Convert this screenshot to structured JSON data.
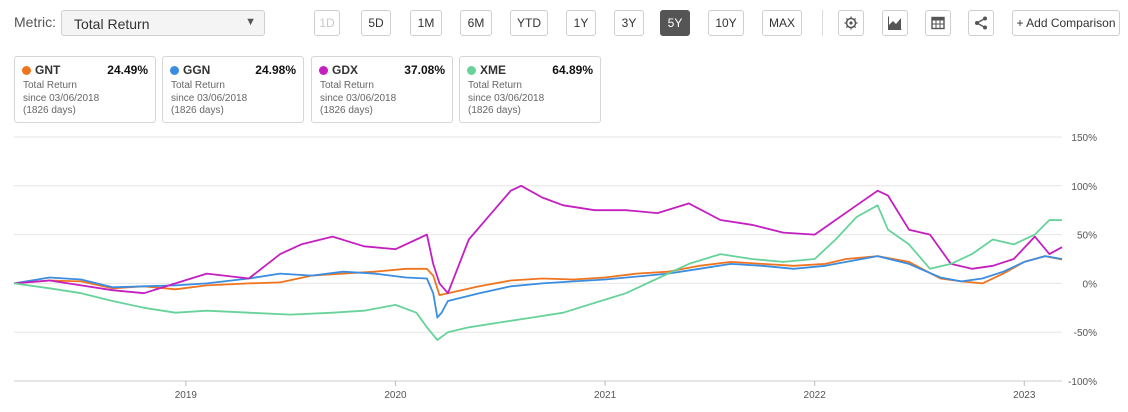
{
  "toolbar": {
    "metric_label": "Metric:",
    "metric_value": "Total Return",
    "ranges": [
      "1D",
      "5D",
      "1M",
      "6M",
      "YTD",
      "1Y",
      "3Y",
      "5Y",
      "10Y",
      "MAX"
    ],
    "active_range": "5Y",
    "disabled_range": "1D",
    "icons": [
      "gear-icon",
      "area-chart-icon",
      "table-icon",
      "share-icon"
    ],
    "add_comparison": "+ Add Comparison"
  },
  "cards": [
    {
      "symbol": "GNT",
      "value": "24.49%",
      "metric": "Total Return",
      "since": "since 03/06/2018",
      "days": "(1826 days)",
      "color": "#f0741e"
    },
    {
      "symbol": "GGN",
      "value": "24.98%",
      "metric": "Total Return",
      "since": "since 03/06/2018",
      "days": "(1826 days)",
      "color": "#3a8de0"
    },
    {
      "symbol": "GDX",
      "value": "37.08%",
      "metric": "Total Return",
      "since": "since 03/06/2018",
      "days": "(1826 days)",
      "color": "#c41fc0"
    },
    {
      "symbol": "XME",
      "value": "64.89%",
      "metric": "Total Return",
      "since": "since 03/06/2018",
      "days": "(1826 days)",
      "color": "#67d39a"
    }
  ],
  "chart_data": {
    "type": "line",
    "x_range": [
      2018.18,
      2023.18
    ],
    "ylim": [
      -100,
      150
    ],
    "y_ticks": [
      150,
      100,
      50,
      0,
      -50,
      -100
    ],
    "y_tick_labels": [
      "150%",
      "100%",
      "50%",
      "0%",
      "-50%",
      "-100%"
    ],
    "x_ticks": [
      2019,
      2020,
      2021,
      2022,
      2023
    ],
    "x_tick_labels": [
      "2019",
      "2020",
      "2021",
      "2022",
      "2023"
    ],
    "grid": "horizontal",
    "series": [
      {
        "name": "GNT",
        "color": "#f0741e",
        "x": [
          2018.18,
          2018.35,
          2018.5,
          2018.65,
          2018.8,
          2018.95,
          2019.1,
          2019.3,
          2019.45,
          2019.6,
          2019.75,
          2019.9,
          2020.05,
          2020.15,
          2020.18,
          2020.21,
          2020.25,
          2020.4,
          2020.55,
          2020.7,
          2020.85,
          2021.0,
          2021.15,
          2021.3,
          2021.45,
          2021.6,
          2021.75,
          2021.9,
          2022.05,
          2022.15,
          2022.3,
          2022.45,
          2022.6,
          2022.7,
          2022.8,
          2022.9,
          2023.0,
          2023.1,
          2023.18
        ],
        "y": [
          0,
          3,
          2,
          -5,
          -3,
          -6,
          -2,
          0,
          1,
          8,
          10,
          12,
          15,
          15,
          8,
          -12,
          -10,
          -3,
          3,
          5,
          4,
          6,
          10,
          12,
          18,
          22,
          20,
          18,
          20,
          25,
          28,
          22,
          5,
          2,
          0,
          10,
          22,
          28,
          24.49
        ]
      },
      {
        "name": "GGN",
        "color": "#3a8de0",
        "x": [
          2018.18,
          2018.35,
          2018.5,
          2018.65,
          2018.8,
          2018.95,
          2019.1,
          2019.3,
          2019.45,
          2019.6,
          2019.75,
          2019.9,
          2020.05,
          2020.15,
          2020.18,
          2020.2,
          2020.22,
          2020.25,
          2020.4,
          2020.55,
          2020.7,
          2020.85,
          2021.0,
          2021.15,
          2021.3,
          2021.45,
          2021.6,
          2021.75,
          2021.9,
          2022.05,
          2022.15,
          2022.3,
          2022.45,
          2022.6,
          2022.7,
          2022.8,
          2022.9,
          2023.0,
          2023.1,
          2023.18
        ],
        "y": [
          0,
          6,
          4,
          -4,
          -3,
          -2,
          0,
          5,
          10,
          8,
          12,
          10,
          6,
          5,
          -10,
          -35,
          -30,
          -18,
          -10,
          -3,
          0,
          2,
          4,
          7,
          10,
          15,
          20,
          18,
          15,
          18,
          22,
          28,
          20,
          6,
          2,
          5,
          12,
          22,
          28,
          24.98
        ]
      },
      {
        "name": "GDX",
        "color": "#c41fc0",
        "x": [
          2018.18,
          2018.35,
          2018.5,
          2018.65,
          2018.8,
          2018.95,
          2019.1,
          2019.3,
          2019.45,
          2019.55,
          2019.7,
          2019.85,
          2020.0,
          2020.1,
          2020.15,
          2020.18,
          2020.21,
          2020.25,
          2020.35,
          2020.45,
          2020.55,
          2020.6,
          2020.7,
          2020.8,
          2020.95,
          2021.1,
          2021.25,
          2021.4,
          2021.55,
          2021.7,
          2021.85,
          2022.0,
          2022.1,
          2022.2,
          2022.3,
          2022.35,
          2022.45,
          2022.55,
          2022.65,
          2022.75,
          2022.85,
          2022.95,
          2023.05,
          2023.12,
          2023.18
        ],
        "y": [
          0,
          3,
          -2,
          -7,
          -10,
          0,
          10,
          5,
          30,
          40,
          48,
          38,
          35,
          45,
          50,
          20,
          0,
          -10,
          45,
          70,
          95,
          100,
          88,
          80,
          75,
          75,
          72,
          82,
          65,
          60,
          52,
          50,
          65,
          80,
          95,
          90,
          55,
          50,
          20,
          15,
          18,
          25,
          48,
          30,
          37.08
        ]
      },
      {
        "name": "XME",
        "color": "#67d39a",
        "x": [
          2018.18,
          2018.35,
          2018.5,
          2018.65,
          2018.8,
          2018.95,
          2019.1,
          2019.3,
          2019.5,
          2019.7,
          2019.85,
          2020.0,
          2020.1,
          2020.15,
          2020.2,
          2020.25,
          2020.35,
          2020.5,
          2020.65,
          2020.8,
          2020.95,
          2021.1,
          2021.25,
          2021.4,
          2021.55,
          2021.7,
          2021.85,
          2022.0,
          2022.1,
          2022.2,
          2022.3,
          2022.35,
          2022.45,
          2022.55,
          2022.65,
          2022.75,
          2022.85,
          2022.95,
          2023.05,
          2023.12,
          2023.18
        ],
        "y": [
          0,
          -5,
          -10,
          -18,
          -25,
          -30,
          -28,
          -30,
          -32,
          -30,
          -28,
          -22,
          -30,
          -45,
          -58,
          -50,
          -45,
          -40,
          -35,
          -30,
          -20,
          -10,
          5,
          20,
          30,
          25,
          22,
          25,
          45,
          68,
          80,
          55,
          40,
          15,
          20,
          30,
          45,
          40,
          50,
          65,
          64.89
        ]
      }
    ]
  }
}
